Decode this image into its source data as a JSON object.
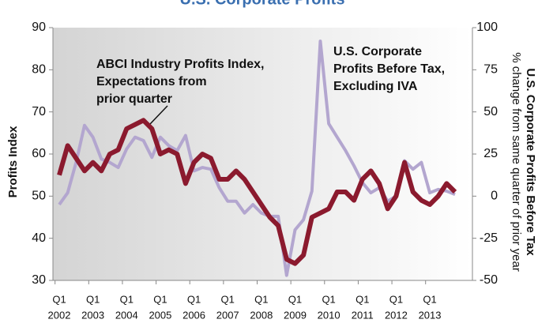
{
  "chart_data": {
    "type": "line",
    "title": "U.S. Corporate Profits",
    "y_label": "Profits Index",
    "y2_label": "U.S. Corporate Profits Before Tax",
    "y2_sublabel": "% change from same quarter of prior year",
    "annotations": [
      "ABCI Industry Profits Index,",
      "Expectations from",
      "prior quarter",
      "U.S. Corporate",
      "Profits Before Tax,",
      "Excluding IVA"
    ],
    "categories": [
      [
        "Q1",
        "2002"
      ],
      null,
      null,
      null,
      [
        "Q1",
        "2003"
      ],
      null,
      null,
      null,
      [
        "Q1",
        "2004"
      ],
      null,
      null,
      null,
      [
        "Q1",
        "2005"
      ],
      null,
      null,
      null,
      [
        "Q1",
        "2006"
      ],
      null,
      null,
      null,
      [
        "Q1",
        "2007"
      ],
      null,
      null,
      null,
      [
        "Q1",
        "2008"
      ],
      null,
      null,
      null,
      [
        "Q1",
        "2009"
      ],
      null,
      null,
      null,
      [
        "Q1",
        "2010"
      ],
      null,
      null,
      null,
      [
        "Q1",
        "2011"
      ],
      null,
      null,
      null,
      [
        "Q1",
        "2012"
      ],
      null,
      null,
      null,
      [
        "Q1",
        "2013"
      ],
      null,
      null,
      null
    ],
    "ylim": [
      30,
      90
    ],
    "yticks": [
      30,
      40,
      50,
      60,
      70,
      80,
      90
    ],
    "y2lim": [
      -50,
      100
    ],
    "y2ticks": [
      -50,
      -25,
      0,
      25,
      50,
      75,
      100
    ],
    "series": [
      {
        "name": "ABCI Industry Profits Index, Expectations from prior quarter",
        "color": "#8b1a2e",
        "values": [
          55,
          62,
          59,
          56,
          58,
          56,
          60,
          61,
          66,
          67,
          68,
          66,
          60,
          61,
          60,
          53,
          58,
          60,
          59,
          54,
          54,
          56,
          54,
          51,
          48,
          45,
          43,
          35,
          34,
          36,
          45,
          46,
          47,
          51,
          51,
          49,
          54,
          56,
          53,
          47,
          50,
          58,
          51,
          49,
          48,
          50,
          53,
          51
        ]
      },
      {
        "name": "U.S. Corporate Profits Before Tax, Excluding IVA",
        "color": "#b3a6cf",
        "axis": "y2",
        "values": [
          -5,
          2,
          20,
          42,
          35,
          22,
          20,
          17,
          28,
          35,
          33,
          23,
          35,
          30,
          27,
          36,
          15,
          17,
          16,
          5,
          -3,
          -3,
          -10,
          -5,
          -10,
          -12,
          -12,
          -47,
          -20,
          -14,
          3,
          92,
          43,
          35,
          27,
          18,
          8,
          2,
          5,
          -3,
          0,
          21,
          16,
          20,
          2,
          4,
          3,
          1
        ]
      }
    ]
  }
}
